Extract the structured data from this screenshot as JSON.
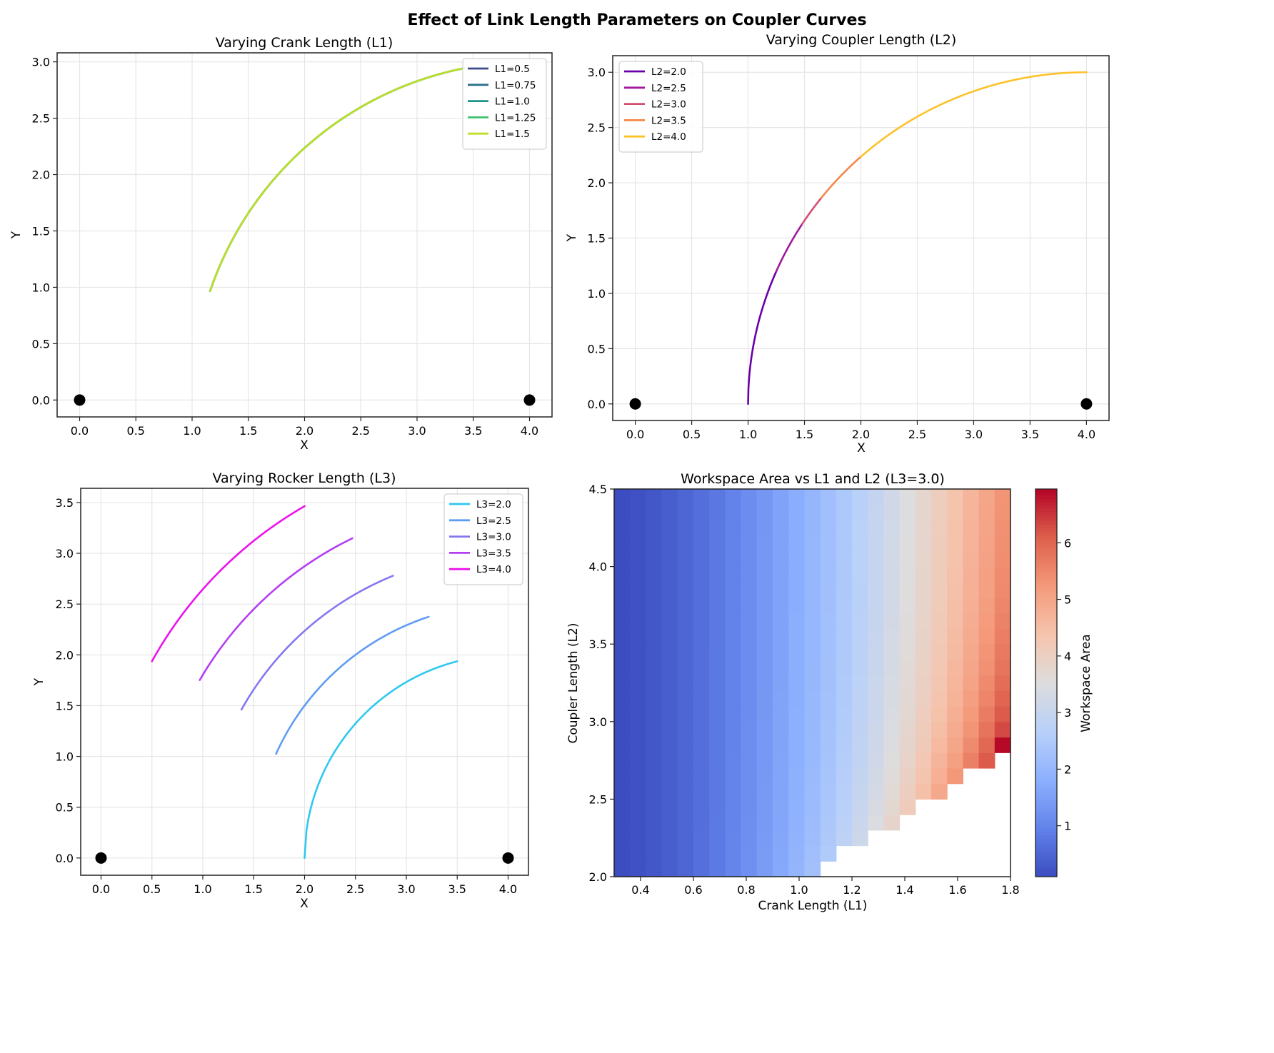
{
  "figure": {
    "title": "Effect of Link Length Parameters on Coupler Curves"
  },
  "colors": {
    "ground_pivot": "#000000",
    "grid": "#e6e6e6",
    "axis": "#222222"
  },
  "chart_data": [
    {
      "type": "line",
      "title": "Varying Crank Length (L1)",
      "xlabel": "X",
      "ylabel": "Y",
      "xlim": [
        -0.2,
        4.2
      ],
      "ylim": [
        -0.15,
        3.08
      ],
      "xticks": [
        "0.0",
        "0.5",
        "1.0",
        "1.5",
        "2.0",
        "2.5",
        "3.0",
        "3.5",
        "4.0"
      ],
      "yticks": [
        "0.0",
        "0.5",
        "1.0",
        "1.5",
        "2.0",
        "2.5",
        "3.0"
      ],
      "grid": true,
      "legend_position": "upper right",
      "ground_pivots": [
        [
          0,
          0
        ],
        [
          4,
          0
        ]
      ],
      "series": [
        {
          "name": "L1=0.5",
          "color": "#3b4a8c",
          "arc": {
            "cx": 4.0,
            "cy": 0.0,
            "r": 3.0,
            "x_start": 1.16,
            "x_end": 3.42
          }
        },
        {
          "name": "L1=0.75",
          "color": "#2c6f8e",
          "arc": {
            "cx": 4.0,
            "cy": 0.0,
            "r": 3.0,
            "x_start": 1.16,
            "x_end": 3.42
          }
        },
        {
          "name": "L1=1.0",
          "color": "#21918c",
          "arc": {
            "cx": 4.0,
            "cy": 0.0,
            "r": 3.0,
            "x_start": 1.16,
            "x_end": 3.42
          }
        },
        {
          "name": "L1=1.25",
          "color": "#43bf71",
          "arc": {
            "cx": 4.0,
            "cy": 0.0,
            "r": 3.0,
            "x_start": 1.16,
            "x_end": 3.42
          }
        },
        {
          "name": "L1=1.5",
          "color": "#bddf26",
          "arc": {
            "cx": 4.0,
            "cy": 0.0,
            "r": 3.0,
            "x_start": 1.16,
            "x_end": 3.42
          }
        }
      ]
    },
    {
      "type": "line",
      "title": "Varying Coupler Length (L2)",
      "xlabel": "X",
      "ylabel": "Y",
      "xlim": [
        -0.2,
        4.2
      ],
      "ylim": [
        -0.15,
        3.15
      ],
      "xticks": [
        "0.0",
        "0.5",
        "1.0",
        "1.5",
        "2.0",
        "2.5",
        "3.0",
        "3.5",
        "4.0"
      ],
      "yticks": [
        "0.0",
        "0.5",
        "1.0",
        "1.5",
        "2.0",
        "2.5",
        "3.0"
      ],
      "grid": true,
      "legend_position": "upper left",
      "ground_pivots": [
        [
          0,
          0
        ],
        [
          4,
          0
        ]
      ],
      "series": [
        {
          "name": "L2=2.0",
          "color": "#6a00a8",
          "arc": {
            "cx": 4.0,
            "cy": 0.0,
            "r": 3.0,
            "x_start": 1.0,
            "x_end": 1.25
          }
        },
        {
          "name": "L2=2.5",
          "color": "#a01a9c",
          "arc": {
            "cx": 4.0,
            "cy": 0.0,
            "r": 3.0,
            "x_start": 1.25,
            "x_end": 1.48
          }
        },
        {
          "name": "L2=3.0",
          "color": "#d24f71",
          "arc": {
            "cx": 4.0,
            "cy": 0.0,
            "r": 3.0,
            "x_start": 1.48,
            "x_end": 1.65
          }
        },
        {
          "name": "L2=3.5",
          "color": "#f48849",
          "arc": {
            "cx": 4.0,
            "cy": 0.0,
            "r": 3.0,
            "x_start": 1.65,
            "x_end": 2.0
          }
        },
        {
          "name": "L2=4.0",
          "color": "#fcc229",
          "arc": {
            "cx": 4.0,
            "cy": 0.0,
            "r": 3.0,
            "x_start": 2.0,
            "x_end": 4.0
          }
        }
      ]
    },
    {
      "type": "line",
      "title": "Varying Rocker Length (L3)",
      "xlabel": "X",
      "ylabel": "Y",
      "xlim": [
        -0.2,
        4.2
      ],
      "ylim": [
        -0.17,
        3.64
      ],
      "xticks": [
        "0.0",
        "0.5",
        "1.0",
        "1.5",
        "2.0",
        "2.5",
        "3.0",
        "3.5",
        "4.0"
      ],
      "yticks": [
        "0.0",
        "0.5",
        "1.0",
        "1.5",
        "2.0",
        "2.5",
        "3.0",
        "3.5"
      ],
      "grid": true,
      "legend_position": "upper right",
      "ground_pivots": [
        [
          0,
          0
        ],
        [
          4,
          0
        ]
      ],
      "series": [
        {
          "name": "L3=2.0",
          "color": "#2ec8f0",
          "arc": {
            "cx": 4.0,
            "cy": 0.0,
            "r": 2.0,
            "x_start": 2.0,
            "x_end": 3.5
          }
        },
        {
          "name": "L3=2.5",
          "color": "#5f9cf2",
          "arc": {
            "cx": 4.0,
            "cy": 0.0,
            "r": 2.5,
            "x_start": 1.72,
            "x_end": 3.22
          }
        },
        {
          "name": "L3=3.0",
          "color": "#8478f0",
          "arc": {
            "cx": 4.0,
            "cy": 0.0,
            "r": 3.0,
            "x_start": 1.38,
            "x_end": 2.87
          }
        },
        {
          "name": "L3=3.5",
          "color": "#b43ef2",
          "arc": {
            "cx": 4.0,
            "cy": 0.0,
            "r": 3.5,
            "x_start": 0.97,
            "x_end": 2.47
          }
        },
        {
          "name": "L3=4.0",
          "color": "#ec12ec",
          "arc": {
            "cx": 4.0,
            "cy": 0.0,
            "r": 4.0,
            "x_start": 0.5,
            "x_end": 2.0
          }
        }
      ]
    },
    {
      "type": "heatmap",
      "title": "Workspace Area vs L1 and L2 (L3=3.0)",
      "xlabel": "Crank Length (L1)",
      "ylabel": "Coupler Length (L2)",
      "xlim": [
        0.3,
        1.8
      ],
      "ylim": [
        2.0,
        4.5
      ],
      "xticks": [
        "0.4",
        "0.6",
        "0.8",
        "1.0",
        "1.2",
        "1.4",
        "1.6",
        "1.8"
      ],
      "yticks": [
        "2.0",
        "2.5",
        "3.0",
        "3.5",
        "4.0",
        "4.5"
      ],
      "x_bins": 25,
      "y_bins": 25,
      "colormap": "coolwarm",
      "colorbar": {
        "label": "Workspace Area",
        "range": [
          0.1,
          6.95
        ],
        "ticks": [
          "1",
          "2",
          "3",
          "4",
          "5",
          "6"
        ]
      },
      "value_model": "area increases with L1 (approx. 0.1 at L1=0.3 to ~5.8 at L1=1.8), slightly peaks near the lower valid L2 boundary; cells with L2 below the staircase boundary (L2 < 2.0 + 1.0*(L1-1.0)) are empty/invalid",
      "max_cell": {
        "L1": 1.77,
        "L2": 2.85,
        "value": 6.9
      }
    }
  ]
}
